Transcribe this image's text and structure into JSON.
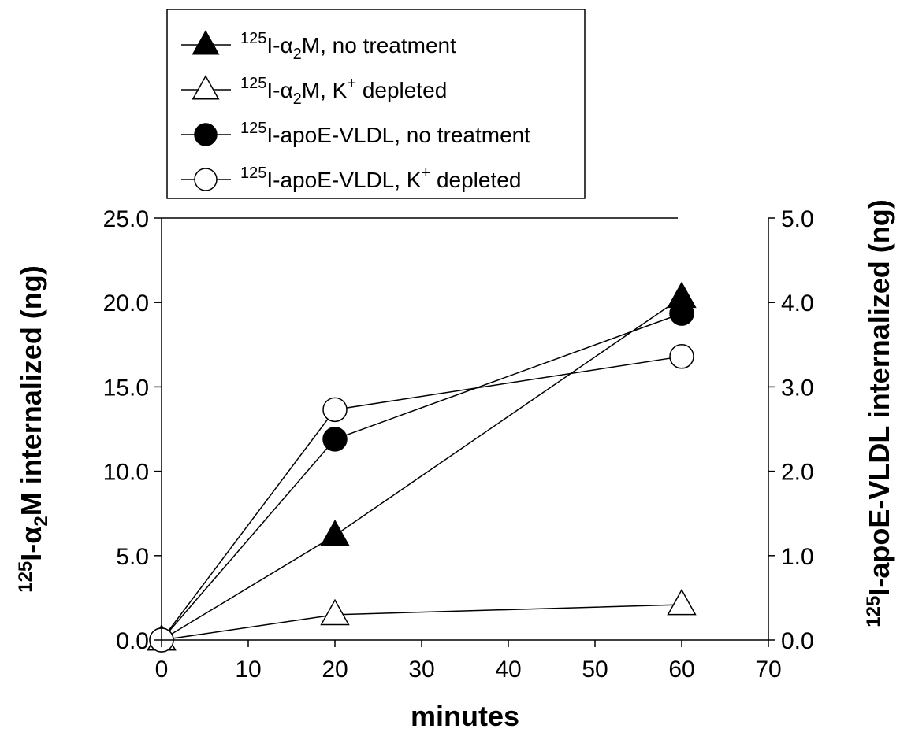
{
  "chart_data": {
    "type": "line",
    "x": [
      0,
      20,
      60
    ],
    "xlabel": "minutes",
    "xlim": [
      0,
      70
    ],
    "xticks": [
      "0",
      "10",
      "20",
      "30",
      "40",
      "50",
      "60",
      "70"
    ],
    "ylabel_left": {
      "sup": "125",
      "pre": "I-",
      "greek": "α",
      "sub": "2",
      "post": "M internalized (ng)"
    },
    "ylim_left": [
      0,
      25
    ],
    "yticks_left": [
      "0.0",
      "5.0",
      "10.0",
      "15.0",
      "20.0",
      "25.0"
    ],
    "ylabel_right": {
      "sup": "125",
      "pre": "I-apoE-VLDL internalized (ng)"
    },
    "ylim_right": [
      0,
      5
    ],
    "yticks_right": [
      "0.0",
      "1.0",
      "2.0",
      "3.0",
      "4.0",
      "5.0"
    ],
    "grid": false,
    "legend_position": "top-left, above plot",
    "series": [
      {
        "name": "125I-α2M, no treatment",
        "legend": {
          "sup": "125",
          "pre": "I-",
          "greek": "α",
          "sub": "2",
          "post": "M, no treatment"
        },
        "axis": "left",
        "marker": "triangle",
        "filled": true,
        "values": [
          0.0,
          6.2,
          20.3
        ]
      },
      {
        "name": "125I-α2M, K+ depleted",
        "legend": {
          "sup": "125",
          "pre": "I-",
          "greek": "α",
          "sub": "2",
          "post": "M, K",
          "sup2": "+",
          "post2": " depleted"
        },
        "axis": "left",
        "marker": "triangle",
        "filled": false,
        "values": [
          0.0,
          1.5,
          2.1
        ]
      },
      {
        "name": "125I-apoE-VLDL, no treatment",
        "legend": {
          "sup": "125",
          "pre": "I-apoE-VLDL, no treatment"
        },
        "axis": "right",
        "marker": "circle",
        "filled": true,
        "values": [
          0.0,
          2.38,
          3.87
        ]
      },
      {
        "name": "125I-apoE-VLDL, K+ depleted",
        "legend": {
          "sup": "125",
          "pre": "I-apoE-VLDL, K",
          "sup2": "+",
          "post2": " depleted"
        },
        "axis": "right",
        "marker": "circle",
        "filled": false,
        "values": [
          0.0,
          2.73,
          3.36
        ]
      }
    ]
  }
}
